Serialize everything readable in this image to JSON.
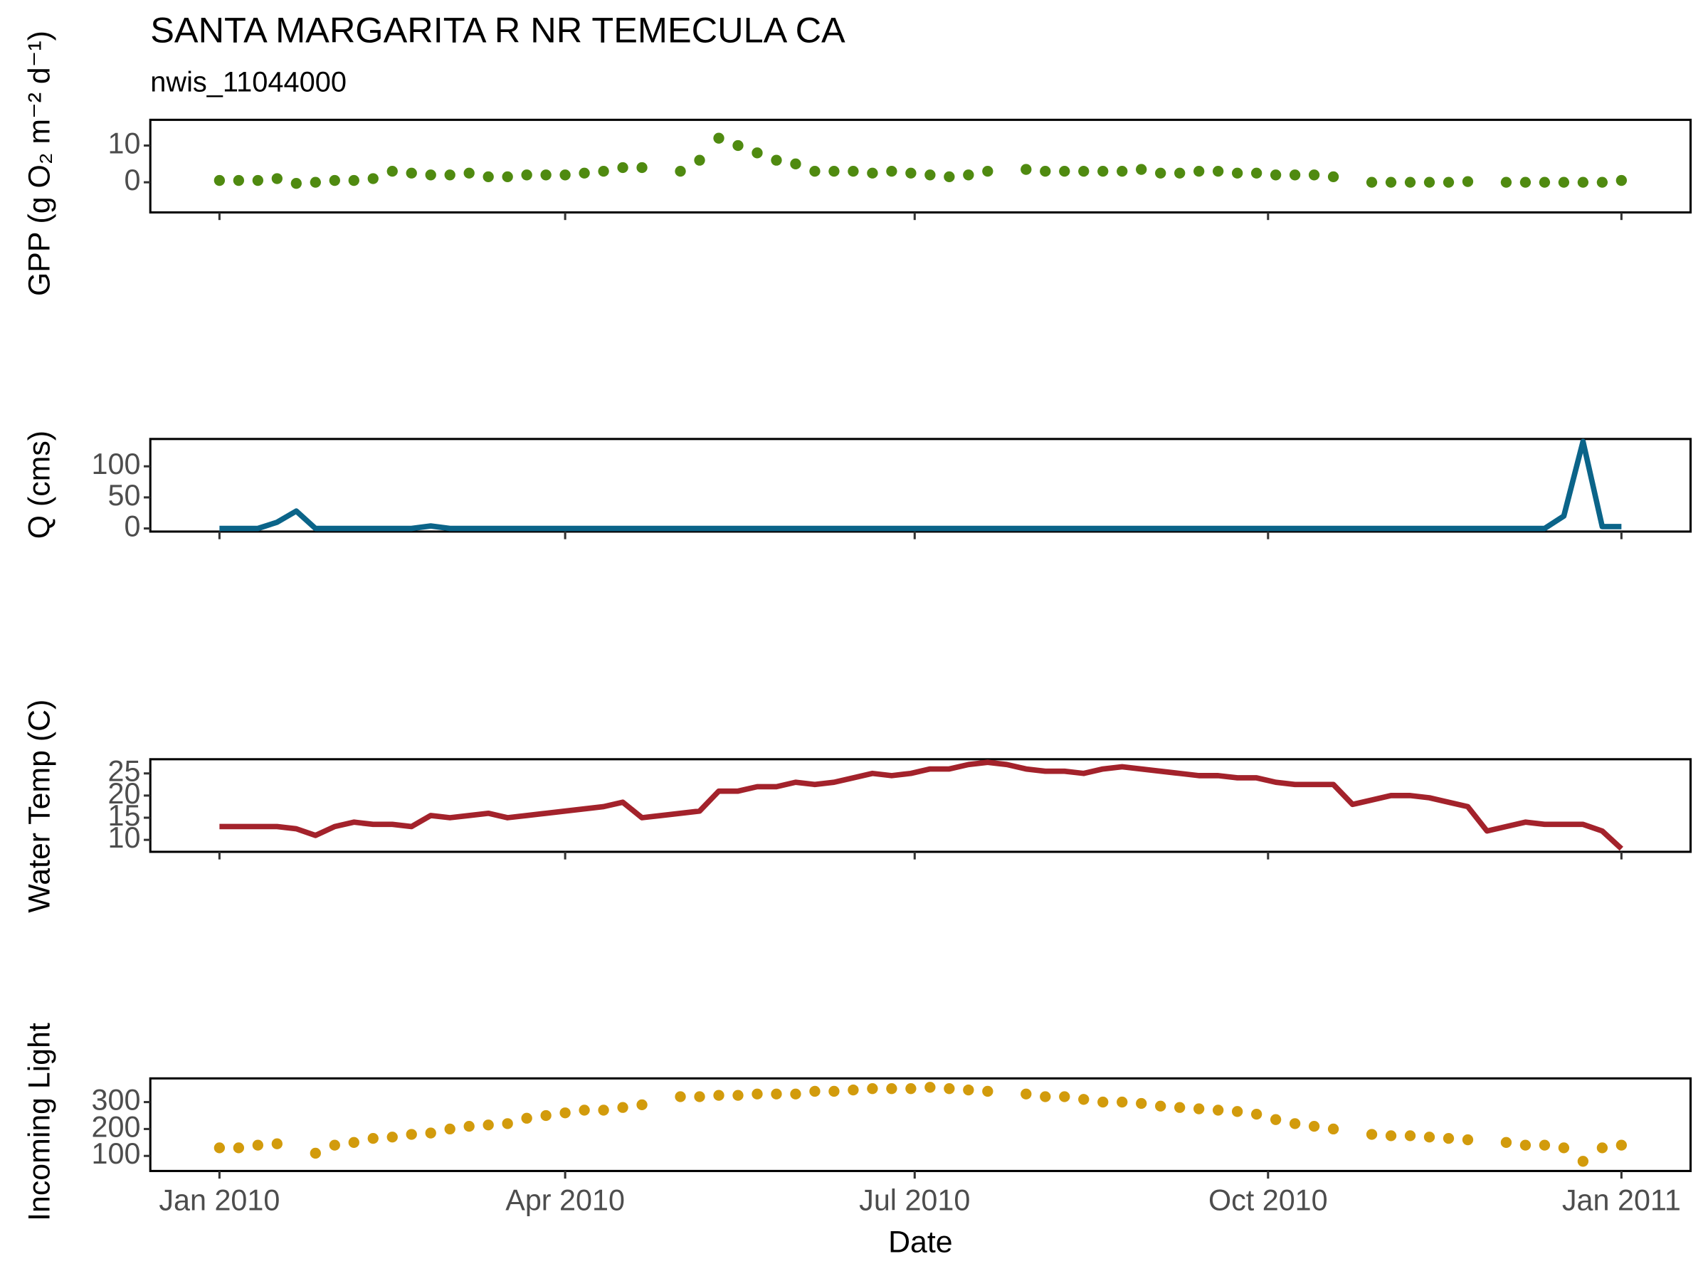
{
  "title": "SANTA MARGARITA R NR TEMECULA CA",
  "subtitle": "nwis_11044000",
  "chart_data": [
    {
      "type": "scatter",
      "ylabel": "GPP (g O₂ m⁻² d⁻¹)",
      "color": "#4f8a10",
      "x": [
        0,
        5,
        10,
        15,
        20,
        25,
        30,
        35,
        40,
        45,
        50,
        55,
        60,
        65,
        70,
        75,
        80,
        85,
        90,
        95,
        100,
        105,
        110,
        115,
        120,
        125,
        130,
        135,
        140,
        145,
        150,
        155,
        160,
        165,
        170,
        175,
        180,
        185,
        190,
        195,
        200,
        205,
        210,
        215,
        220,
        225,
        230,
        235,
        240,
        245,
        250,
        255,
        260,
        265,
        270,
        275,
        280,
        285,
        290,
        295,
        300,
        305,
        310,
        315,
        320,
        325,
        330,
        335,
        340,
        345,
        350,
        355,
        360,
        365
      ],
      "values": [
        0.5,
        0.5,
        0.5,
        1,
        -0.3,
        0,
        0.5,
        0.5,
        1,
        3,
        2.5,
        2,
        2,
        2.5,
        1.5,
        1.5,
        2,
        2,
        2,
        2.5,
        3,
        4,
        4,
        null,
        3,
        6,
        12,
        10,
        8,
        6,
        5,
        3,
        3,
        3,
        2.5,
        3,
        2.5,
        2,
        1.5,
        2,
        3,
        null,
        3.5,
        3,
        3,
        3,
        3,
        3,
        3.5,
        2.5,
        2.5,
        3,
        3,
        2.5,
        2.5,
        2,
        2,
        2,
        1.5,
        null,
        0,
        0,
        0,
        0,
        0,
        0.2,
        null,
        0,
        0,
        0,
        0,
        0,
        0,
        0.5
      ],
      "xlim": [
        -18,
        383
      ],
      "xticks": [
        0,
        90,
        181,
        273,
        365
      ],
      "ylim": [
        -8.2,
        17
      ],
      "yticks": [
        0,
        10
      ]
    },
    {
      "type": "line",
      "ylabel": "Q (cms)",
      "color": "#0b6489",
      "x": [
        0,
        5,
        10,
        15,
        20,
        25,
        30,
        35,
        40,
        45,
        50,
        55,
        60,
        65,
        70,
        75,
        80,
        85,
        90,
        95,
        100,
        105,
        110,
        115,
        120,
        125,
        130,
        135,
        140,
        145,
        150,
        155,
        160,
        165,
        170,
        175,
        180,
        185,
        190,
        195,
        200,
        205,
        210,
        215,
        220,
        225,
        230,
        235,
        240,
        245,
        250,
        255,
        260,
        265,
        270,
        275,
        280,
        285,
        290,
        295,
        300,
        305,
        310,
        315,
        320,
        325,
        330,
        335,
        340,
        345,
        350,
        355,
        360,
        365
      ],
      "values": [
        0,
        0,
        0,
        10,
        28,
        0,
        0,
        0,
        0,
        0,
        0,
        4,
        0,
        0,
        0,
        0,
        0,
        0,
        0,
        0,
        0,
        0,
        0,
        0,
        0,
        0,
        0,
        0,
        0,
        0,
        0,
        0,
        0,
        0,
        0,
        0,
        0,
        0,
        0,
        0,
        0,
        0,
        0,
        0,
        0,
        0,
        0,
        0,
        0,
        0,
        0,
        0,
        0,
        0,
        0,
        0,
        0,
        0,
        0,
        0,
        0,
        0,
        0,
        0,
        0,
        0,
        0,
        0,
        0,
        0,
        20,
        140,
        3,
        3
      ],
      "xlim": [
        -18,
        383
      ],
      "xticks": [
        0,
        90,
        181,
        273,
        365
      ],
      "ylim": [
        -5,
        144
      ],
      "yticks": [
        0,
        50,
        100
      ]
    },
    {
      "type": "line",
      "ylabel": "Water Temp (C)",
      "color": "#a3222b",
      "x": [
        0,
        5,
        10,
        15,
        20,
        25,
        30,
        35,
        40,
        45,
        50,
        55,
        60,
        65,
        70,
        75,
        80,
        85,
        90,
        95,
        100,
        105,
        110,
        115,
        120,
        125,
        130,
        135,
        140,
        145,
        150,
        155,
        160,
        165,
        170,
        175,
        180,
        185,
        190,
        195,
        200,
        205,
        210,
        215,
        220,
        225,
        230,
        235,
        240,
        245,
        250,
        255,
        260,
        265,
        270,
        275,
        280,
        285,
        290,
        295,
        300,
        305,
        310,
        315,
        320,
        325,
        330,
        335,
        340,
        345,
        350,
        355,
        360,
        365
      ],
      "values": [
        13,
        13,
        13,
        13,
        12.5,
        11,
        13,
        14,
        13.5,
        13.5,
        13,
        15.5,
        15,
        15.5,
        16,
        15,
        15.5,
        16,
        16.5,
        17,
        17.5,
        18.5,
        15,
        15.5,
        16,
        16.5,
        21,
        21,
        22,
        22,
        23,
        22.5,
        23,
        24,
        25,
        24.5,
        25,
        26,
        26,
        27,
        27.5,
        27,
        26,
        25.5,
        25.5,
        25,
        26,
        26.5,
        26,
        25.5,
        25,
        24.5,
        24.5,
        24,
        24,
        23,
        22.5,
        22.5,
        22.5,
        18,
        19,
        20,
        20,
        19.5,
        18.5,
        17.5,
        12,
        13,
        14,
        13.5,
        13.5,
        13.5,
        12,
        8
      ],
      "xlim": [
        -18,
        383
      ],
      "xticks": [
        0,
        90,
        181,
        273,
        365
      ],
      "ylim": [
        7.3,
        28.2
      ],
      "yticks": [
        10,
        15,
        20,
        25
      ]
    },
    {
      "type": "scatter",
      "ylabel": "Incoming Light",
      "xlabel": "Date",
      "color": "#d29b0c",
      "x": [
        0,
        5,
        10,
        15,
        20,
        25,
        30,
        35,
        40,
        45,
        50,
        55,
        60,
        65,
        70,
        75,
        80,
        85,
        90,
        95,
        100,
        105,
        110,
        115,
        120,
        125,
        130,
        135,
        140,
        145,
        150,
        155,
        160,
        165,
        170,
        175,
        180,
        185,
        190,
        195,
        200,
        205,
        210,
        215,
        220,
        225,
        230,
        235,
        240,
        245,
        250,
        255,
        260,
        265,
        270,
        275,
        280,
        285,
        290,
        295,
        300,
        305,
        310,
        315,
        320,
        325,
        330,
        335,
        340,
        345,
        350,
        355,
        360,
        365
      ],
      "values": [
        130,
        130,
        140,
        145,
        null,
        110,
        140,
        150,
        165,
        170,
        180,
        185,
        200,
        210,
        215,
        220,
        240,
        250,
        260,
        270,
        270,
        280,
        290,
        null,
        320,
        320,
        325,
        325,
        330,
        330,
        330,
        340,
        340,
        345,
        350,
        350,
        350,
        355,
        350,
        345,
        340,
        null,
        330,
        320,
        320,
        310,
        300,
        300,
        295,
        285,
        280,
        275,
        270,
        265,
        255,
        235,
        220,
        210,
        200,
        null,
        180,
        175,
        175,
        170,
        165,
        160,
        null,
        150,
        140,
        140,
        130,
        80,
        130,
        140
      ],
      "xlim": [
        -18,
        383
      ],
      "xticks": [
        {
          "value": 0,
          "label": "Jan 2010"
        },
        {
          "value": 90,
          "label": "Apr 2010"
        },
        {
          "value": 181,
          "label": "Jul 2010"
        },
        {
          "value": 273,
          "label": "Oct 2010"
        },
        {
          "value": 365,
          "label": "Jan 2011"
        }
      ],
      "ylim": [
        44,
        388
      ],
      "yticks": [
        100,
        200,
        300
      ]
    }
  ]
}
